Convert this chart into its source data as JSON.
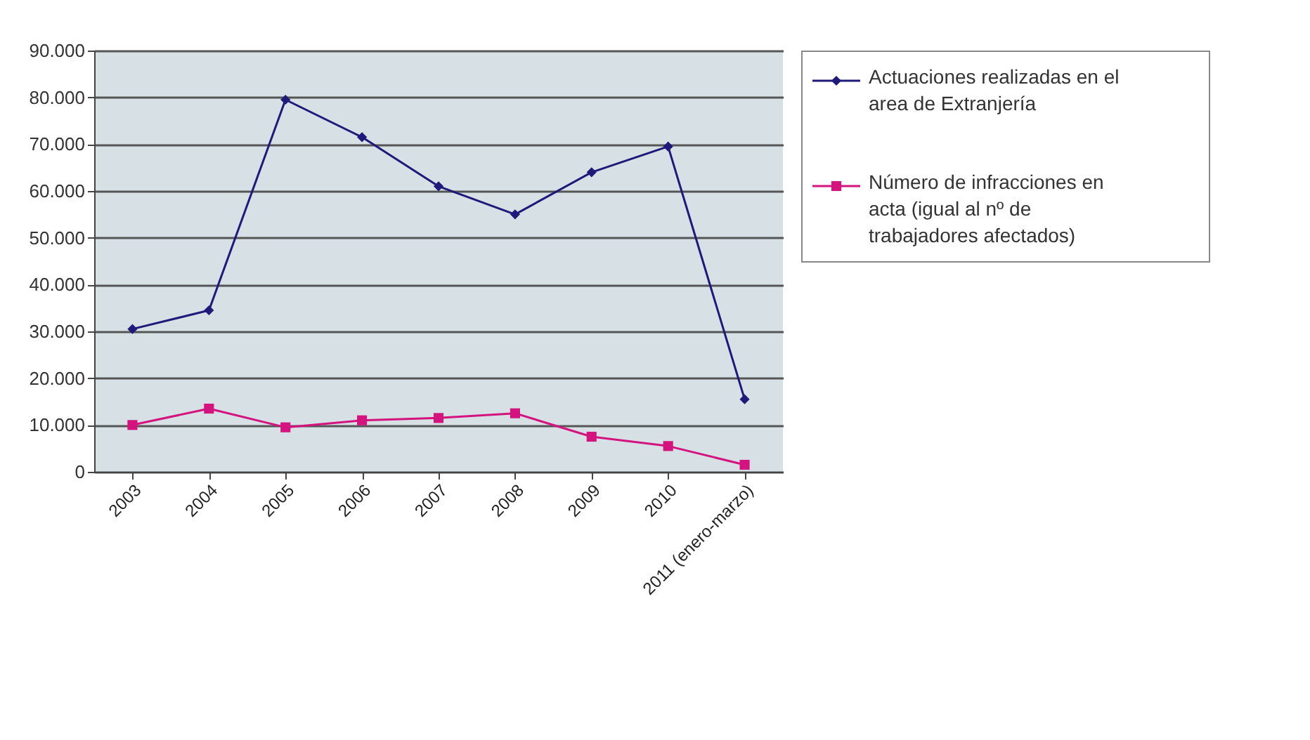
{
  "chart_data": {
    "type": "line",
    "categories": [
      "2003",
      "2004",
      "2005",
      "2006",
      "2007",
      "2008",
      "2009",
      "2010",
      "2011 (enero-marzo)"
    ],
    "series": [
      {
        "name": "Actuaciones realizadas en el area de Extranjería",
        "color": "#1f1a7a",
        "marker": "diamond",
        "values": [
          30500,
          34500,
          79500,
          71500,
          61000,
          55000,
          64000,
          69500,
          15500
        ]
      },
      {
        "name": "Número de infracciones en acta  (igual al nº de trabajadores afectados)",
        "color": "#d4137f",
        "marker": "square",
        "values": [
          10000,
          13500,
          9500,
          11000,
          11500,
          12500,
          7500,
          5500,
          1500
        ]
      }
    ],
    "ylim": [
      0,
      90000
    ],
    "yticks": [
      {
        "value": 0,
        "label": "0"
      },
      {
        "value": 10000,
        "label": "10.000"
      },
      {
        "value": 20000,
        "label": "20.000"
      },
      {
        "value": 30000,
        "label": "30.000"
      },
      {
        "value": 40000,
        "label": "40.000"
      },
      {
        "value": 50000,
        "label": "50.000"
      },
      {
        "value": 60000,
        "label": "60.000"
      },
      {
        "value": 70000,
        "label": "70.000"
      },
      {
        "value": 80000,
        "label": "80.000"
      },
      {
        "value": 90000,
        "label": "90.000"
      }
    ],
    "grid": "y",
    "legend": "right",
    "line_style": "solid"
  }
}
